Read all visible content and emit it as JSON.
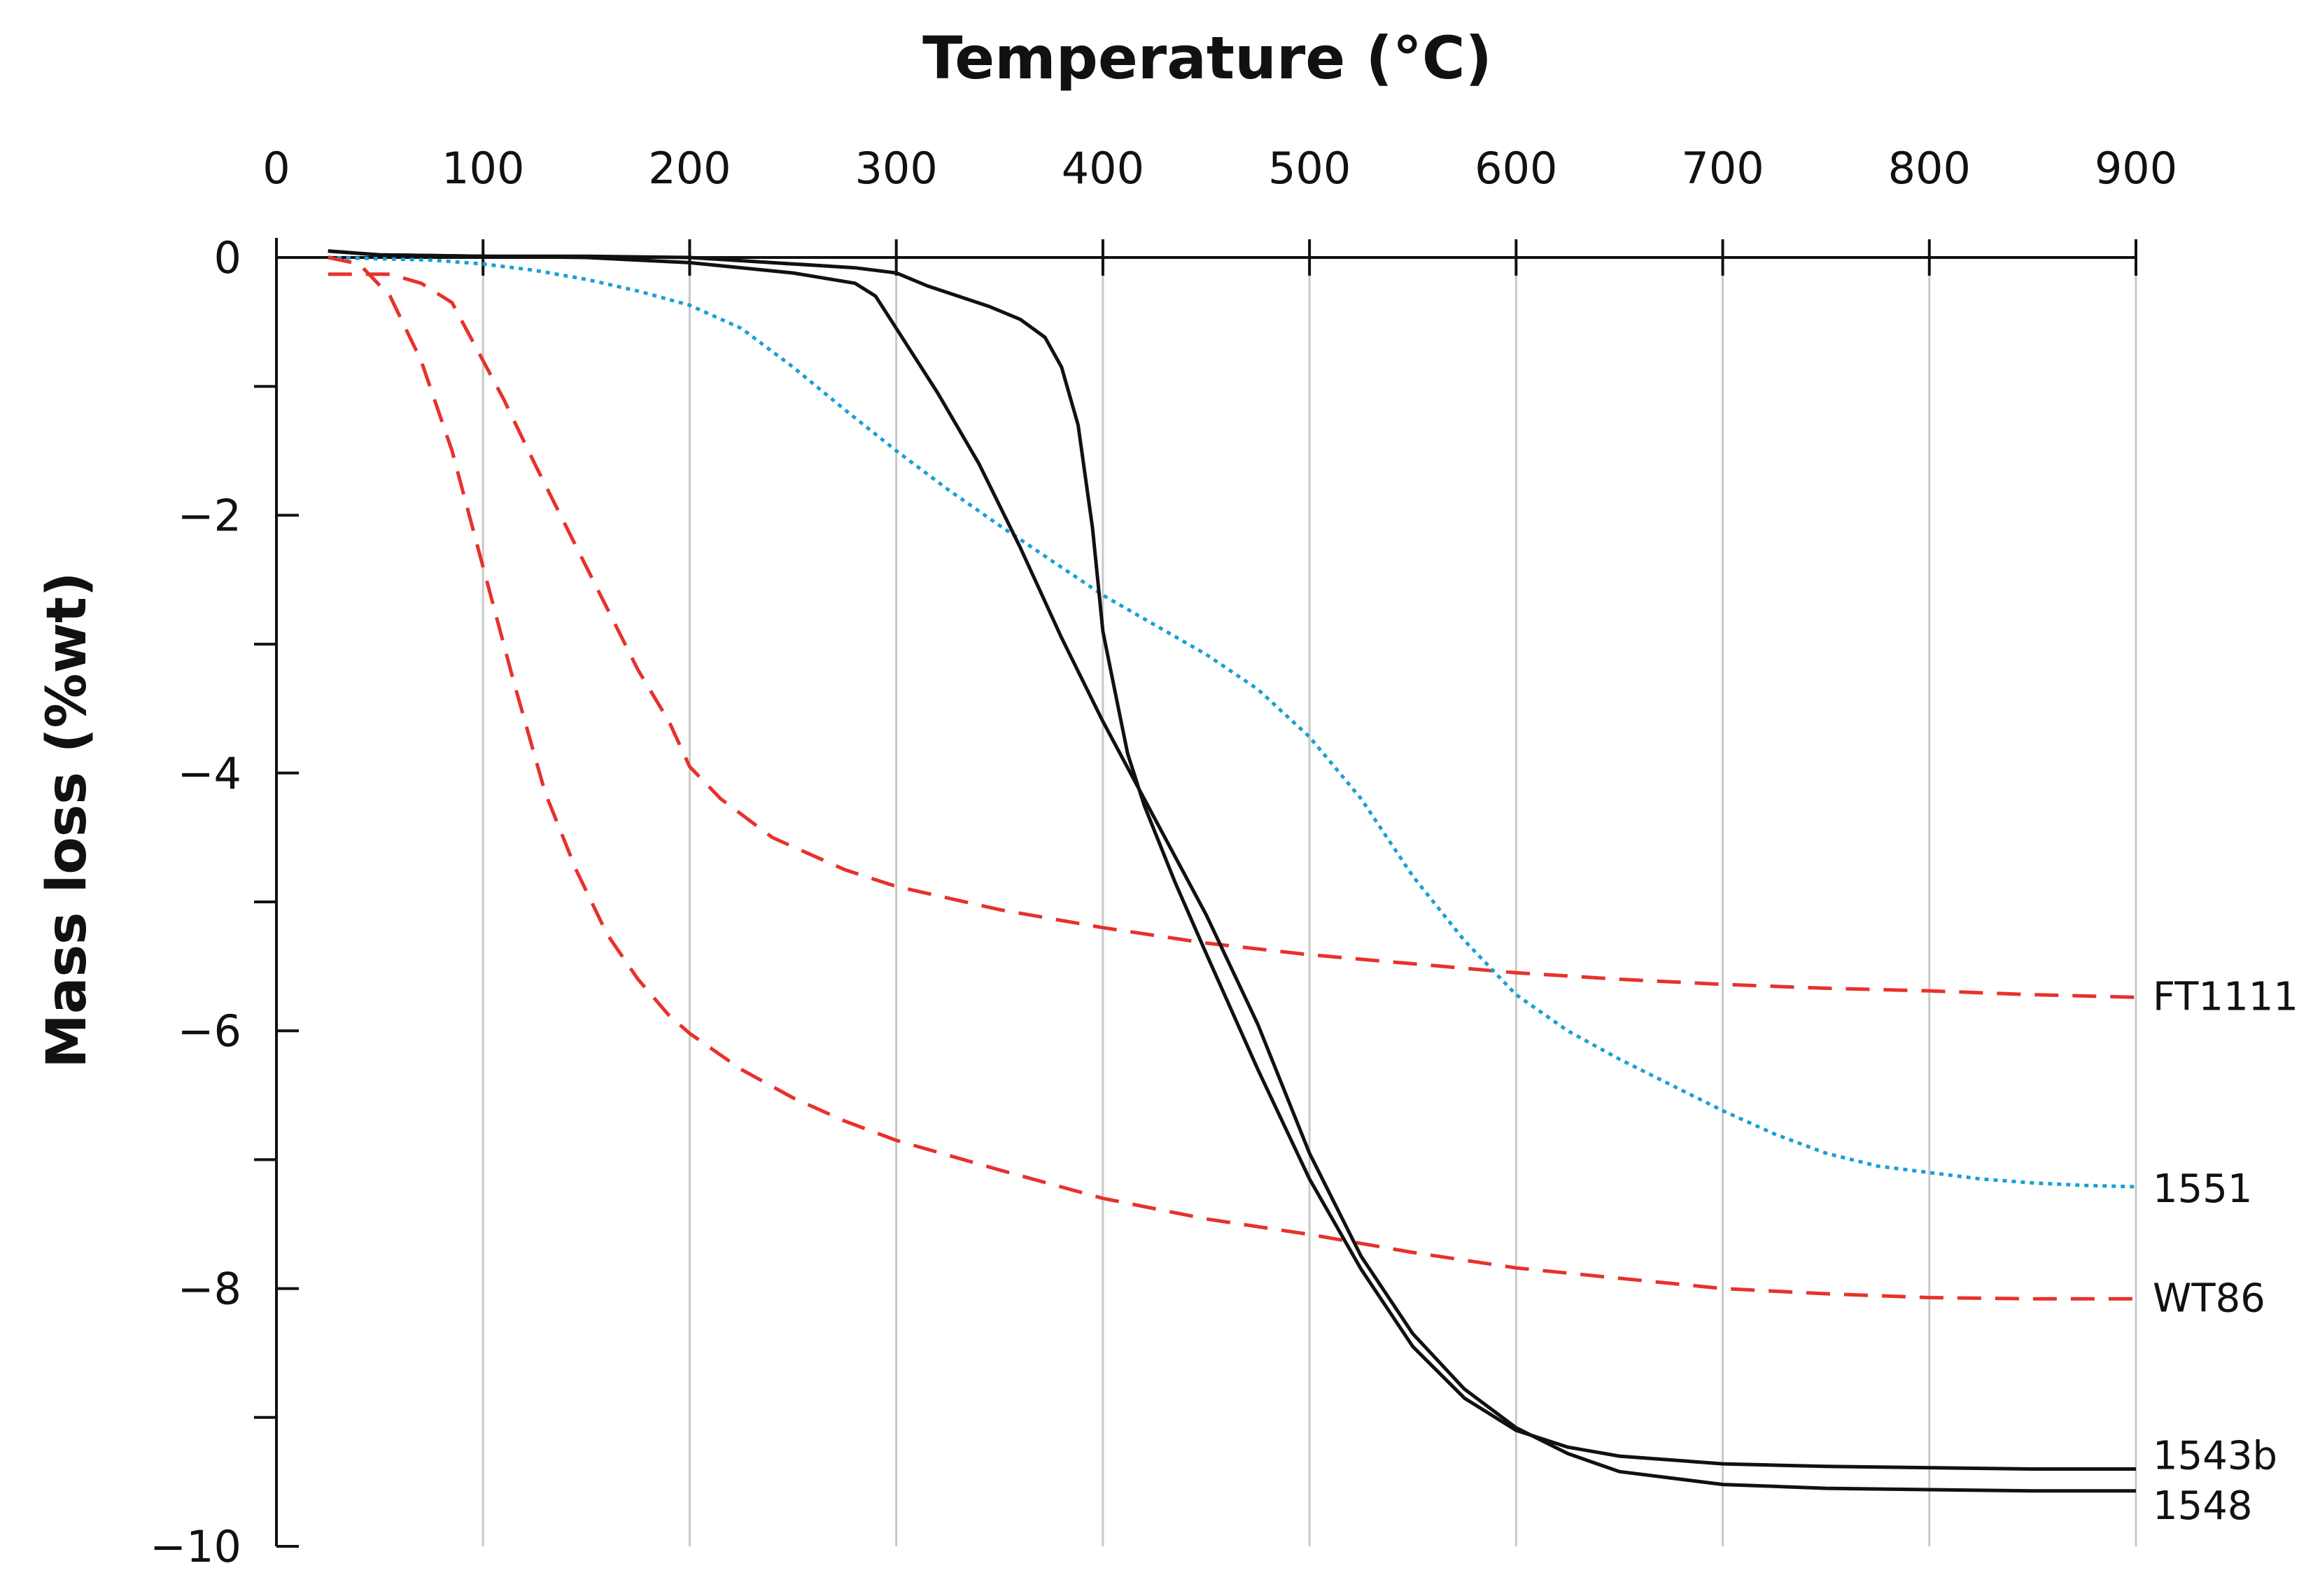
{
  "chart_data": {
    "type": "line",
    "title": "Temperature (°C)",
    "xlabel": "Temperature (°C)",
    "ylabel": "Mass loss (%wt)",
    "xlim": [
      0,
      900
    ],
    "ylim": [
      -10,
      0
    ],
    "x_ticks": [
      0,
      100,
      200,
      300,
      400,
      500,
      600,
      700,
      800,
      900
    ],
    "x_tick_labels": [
      "0",
      "100",
      "200",
      "300",
      "400",
      "500",
      "600",
      "700",
      "800",
      "900"
    ],
    "y_ticks": [
      0,
      -2,
      -4,
      -6,
      -8,
      -10
    ],
    "y_tick_labels": [
      "0",
      "−2",
      "−4",
      "−6",
      "−8",
      "−10"
    ],
    "y_minor_ticks": [
      -1,
      -3,
      -5,
      -7,
      -9
    ],
    "x_axis_position": "top",
    "grid": "vertical",
    "legend": "inline labels at right end of each series",
    "series": [
      {
        "name": "FT1111",
        "color": "#e8312b",
        "dash": "dashed",
        "points": [
          [
            25,
            -0.13
          ],
          [
            40,
            -0.13
          ],
          [
            55,
            -0.13
          ],
          [
            70,
            -0.2
          ],
          [
            85,
            -0.35
          ],
          [
            100,
            -0.8
          ],
          [
            110,
            -1.1
          ],
          [
            125,
            -1.6
          ],
          [
            150,
            -2.4
          ],
          [
            175,
            -3.2
          ],
          [
            190,
            -3.6
          ],
          [
            200,
            -3.95
          ],
          [
            215,
            -4.2
          ],
          [
            240,
            -4.5
          ],
          [
            275,
            -4.75
          ],
          [
            300,
            -4.88
          ],
          [
            350,
            -5.06
          ],
          [
            400,
            -5.2
          ],
          [
            450,
            -5.32
          ],
          [
            500,
            -5.41
          ],
          [
            550,
            -5.48
          ],
          [
            600,
            -5.55
          ],
          [
            650,
            -5.6
          ],
          [
            700,
            -5.64
          ],
          [
            750,
            -5.67
          ],
          [
            800,
            -5.69
          ],
          [
            850,
            -5.72
          ],
          [
            900,
            -5.74
          ]
        ]
      },
      {
        "name": "1551",
        "color": "#1a9fd6",
        "dash": "dotted",
        "points": [
          [
            25,
            0.0
          ],
          [
            50,
            -0.01
          ],
          [
            75,
            -0.02
          ],
          [
            100,
            -0.05
          ],
          [
            125,
            -0.1
          ],
          [
            150,
            -0.17
          ],
          [
            175,
            -0.26
          ],
          [
            200,
            -0.37
          ],
          [
            225,
            -0.55
          ],
          [
            250,
            -0.85
          ],
          [
            275,
            -1.18
          ],
          [
            300,
            -1.5
          ],
          [
            325,
            -1.8
          ],
          [
            350,
            -2.08
          ],
          [
            375,
            -2.35
          ],
          [
            400,
            -2.62
          ],
          [
            425,
            -2.85
          ],
          [
            450,
            -3.08
          ],
          [
            475,
            -3.35
          ],
          [
            500,
            -3.72
          ],
          [
            525,
            -4.2
          ],
          [
            550,
            -4.8
          ],
          [
            575,
            -5.3
          ],
          [
            600,
            -5.72
          ],
          [
            625,
            -6.0
          ],
          [
            650,
            -6.22
          ],
          [
            675,
            -6.42
          ],
          [
            700,
            -6.62
          ],
          [
            725,
            -6.8
          ],
          [
            750,
            -6.95
          ],
          [
            775,
            -7.05
          ],
          [
            800,
            -7.1
          ],
          [
            825,
            -7.15
          ],
          [
            850,
            -7.18
          ],
          [
            875,
            -7.2
          ],
          [
            900,
            -7.21
          ]
        ]
      },
      {
        "name": "WT86",
        "color": "#e8312b",
        "dash": "dashed",
        "points": [
          [
            25,
            0.0
          ],
          [
            40,
            -0.05
          ],
          [
            55,
            -0.3
          ],
          [
            70,
            -0.8
          ],
          [
            85,
            -1.5
          ],
          [
            100,
            -2.4
          ],
          [
            115,
            -3.3
          ],
          [
            130,
            -4.15
          ],
          [
            145,
            -4.75
          ],
          [
            160,
            -5.25
          ],
          [
            175,
            -5.6
          ],
          [
            190,
            -5.88
          ],
          [
            200,
            -6.02
          ],
          [
            225,
            -6.3
          ],
          [
            250,
            -6.52
          ],
          [
            275,
            -6.7
          ],
          [
            300,
            -6.85
          ],
          [
            350,
            -7.08
          ],
          [
            400,
            -7.3
          ],
          [
            450,
            -7.46
          ],
          [
            500,
            -7.58
          ],
          [
            550,
            -7.72
          ],
          [
            600,
            -7.84
          ],
          [
            650,
            -7.92
          ],
          [
            700,
            -8.0
          ],
          [
            750,
            -8.04
          ],
          [
            800,
            -8.07
          ],
          [
            850,
            -8.08
          ],
          [
            900,
            -8.08
          ]
        ]
      },
      {
        "name": "1543b",
        "color": "#111111",
        "dash": "solid",
        "points": [
          [
            25,
            0.05
          ],
          [
            50,
            0.02
          ],
          [
            100,
            0.01
          ],
          [
            150,
            0.01
          ],
          [
            200,
            0.0
          ],
          [
            250,
            -0.05
          ],
          [
            280,
            -0.08
          ],
          [
            300,
            -0.12
          ],
          [
            315,
            -0.22
          ],
          [
            330,
            -0.3
          ],
          [
            345,
            -0.38
          ],
          [
            360,
            -0.48
          ],
          [
            372,
            -0.62
          ],
          [
            380,
            -0.85
          ],
          [
            388,
            -1.3
          ],
          [
            395,
            -2.1
          ],
          [
            400,
            -2.9
          ],
          [
            405,
            -3.3
          ],
          [
            412,
            -3.85
          ],
          [
            420,
            -4.25
          ],
          [
            435,
            -4.85
          ],
          [
            450,
            -5.4
          ],
          [
            475,
            -6.3
          ],
          [
            500,
            -7.15
          ],
          [
            525,
            -7.85
          ],
          [
            550,
            -8.45
          ],
          [
            575,
            -8.85
          ],
          [
            600,
            -9.1
          ],
          [
            625,
            -9.23
          ],
          [
            650,
            -9.3
          ],
          [
            700,
            -9.36
          ],
          [
            750,
            -9.38
          ],
          [
            800,
            -9.39
          ],
          [
            850,
            -9.4
          ],
          [
            900,
            -9.4
          ]
        ]
      },
      {
        "name": "1548",
        "color": "#111111",
        "dash": "solid",
        "points": [
          [
            25,
            0.05
          ],
          [
            50,
            0.02
          ],
          [
            100,
            0.01
          ],
          [
            150,
            0.0
          ],
          [
            200,
            -0.04
          ],
          [
            250,
            -0.12
          ],
          [
            280,
            -0.2
          ],
          [
            290,
            -0.3
          ],
          [
            300,
            -0.55
          ],
          [
            320,
            -1.05
          ],
          [
            340,
            -1.6
          ],
          [
            360,
            -2.25
          ],
          [
            380,
            -2.95
          ],
          [
            400,
            -3.6
          ],
          [
            425,
            -4.35
          ],
          [
            450,
            -5.1
          ],
          [
            475,
            -5.95
          ],
          [
            500,
            -6.95
          ],
          [
            525,
            -7.75
          ],
          [
            550,
            -8.35
          ],
          [
            575,
            -8.78
          ],
          [
            600,
            -9.08
          ],
          [
            625,
            -9.28
          ],
          [
            650,
            -9.42
          ],
          [
            700,
            -9.52
          ],
          [
            750,
            -9.55
          ],
          [
            800,
            -9.56
          ],
          [
            850,
            -9.57
          ],
          [
            900,
            -9.57
          ]
        ]
      }
    ]
  }
}
